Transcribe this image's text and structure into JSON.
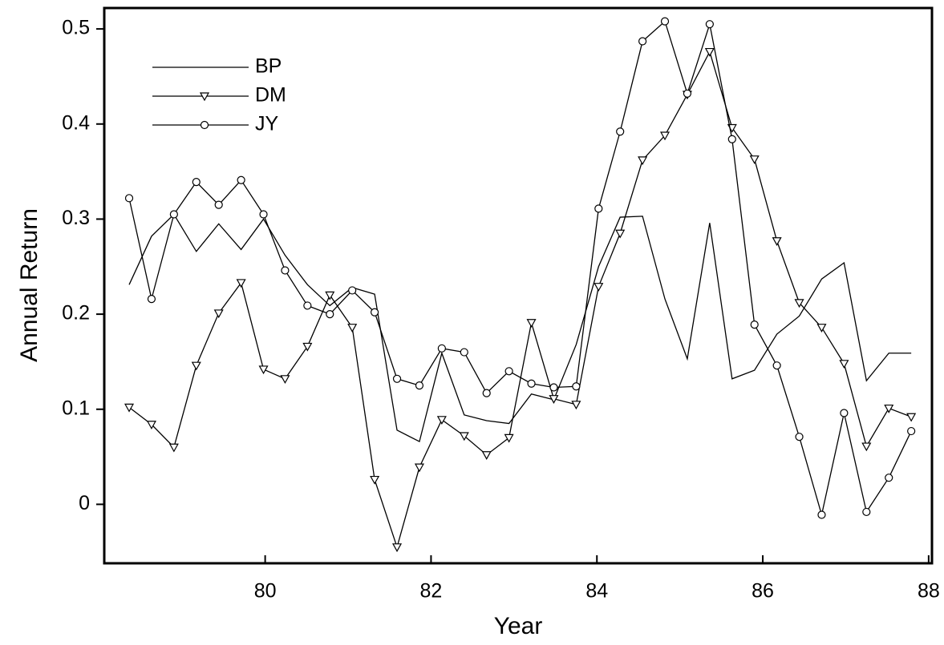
{
  "chart_data": {
    "type": "line",
    "xlabel": "Year",
    "ylabel": "Annual Return",
    "x": [
      78.36,
      78.63,
      78.9,
      79.17,
      79.44,
      79.71,
      79.98,
      80.24,
      80.51,
      80.78,
      81.05,
      81.32,
      81.59,
      81.86,
      82.13,
      82.4,
      82.67,
      82.94,
      83.21,
      83.48,
      83.75,
      84.02,
      84.28,
      84.55,
      84.82,
      85.09,
      85.36,
      85.63,
      85.9,
      86.17,
      86.44,
      86.71,
      86.98,
      87.25,
      87.52,
      87.79
    ],
    "series": [
      {
        "name": "BP",
        "color": "#000000",
        "marker": "none",
        "values": [
          0.231,
          0.282,
          0.305,
          0.266,
          0.295,
          0.268,
          0.3,
          0.262,
          0.231,
          0.209,
          0.228,
          0.221,
          0.078,
          0.066,
          0.159,
          0.094,
          0.088,
          0.085,
          0.116,
          0.11,
          0.168,
          0.25,
          0.302,
          0.303,
          0.216,
          0.153,
          0.296,
          0.132,
          0.141,
          0.179,
          0.198,
          0.237,
          0.254,
          0.13,
          0.159,
          0.159
        ]
      },
      {
        "name": "DM",
        "color": "#000000",
        "marker": "triangle-down",
        "values": [
          0.102,
          0.084,
          0.06,
          0.146,
          0.201,
          0.233,
          0.142,
          0.132,
          0.166,
          0.22,
          0.186,
          0.026,
          -0.045,
          0.039,
          0.089,
          0.072,
          0.052,
          0.07,
          0.191,
          0.111,
          0.105,
          0.229,
          0.285,
          0.362,
          0.388,
          0.431,
          0.476,
          0.396,
          0.363,
          0.277,
          0.212,
          0.186,
          0.148,
          0.061,
          0.101,
          0.092
        ]
      },
      {
        "name": "JY",
        "color": "#000000",
        "marker": "circle",
        "values": [
          0.322,
          0.216,
          0.305,
          0.339,
          0.315,
          0.341,
          0.305,
          0.246,
          0.209,
          0.2,
          0.225,
          0.202,
          0.132,
          0.125,
          0.164,
          0.16,
          0.117,
          0.14,
          0.127,
          0.123,
          0.124,
          0.311,
          0.392,
          0.487,
          0.508,
          0.432,
          0.505,
          0.384,
          0.189,
          0.146,
          0.071,
          -0.011,
          0.096,
          -0.008,
          0.028,
          0.077
        ]
      }
    ],
    "xlim": [
      78.06,
      88.04
    ],
    "xticks": [
      80,
      82,
      84,
      86,
      88
    ],
    "ylim": [
      -0.062,
      0.522
    ],
    "yticks": [
      0,
      0.1,
      0.2,
      0.3,
      0.4,
      0.5
    ],
    "grid": false,
    "legend": "upper-left"
  }
}
